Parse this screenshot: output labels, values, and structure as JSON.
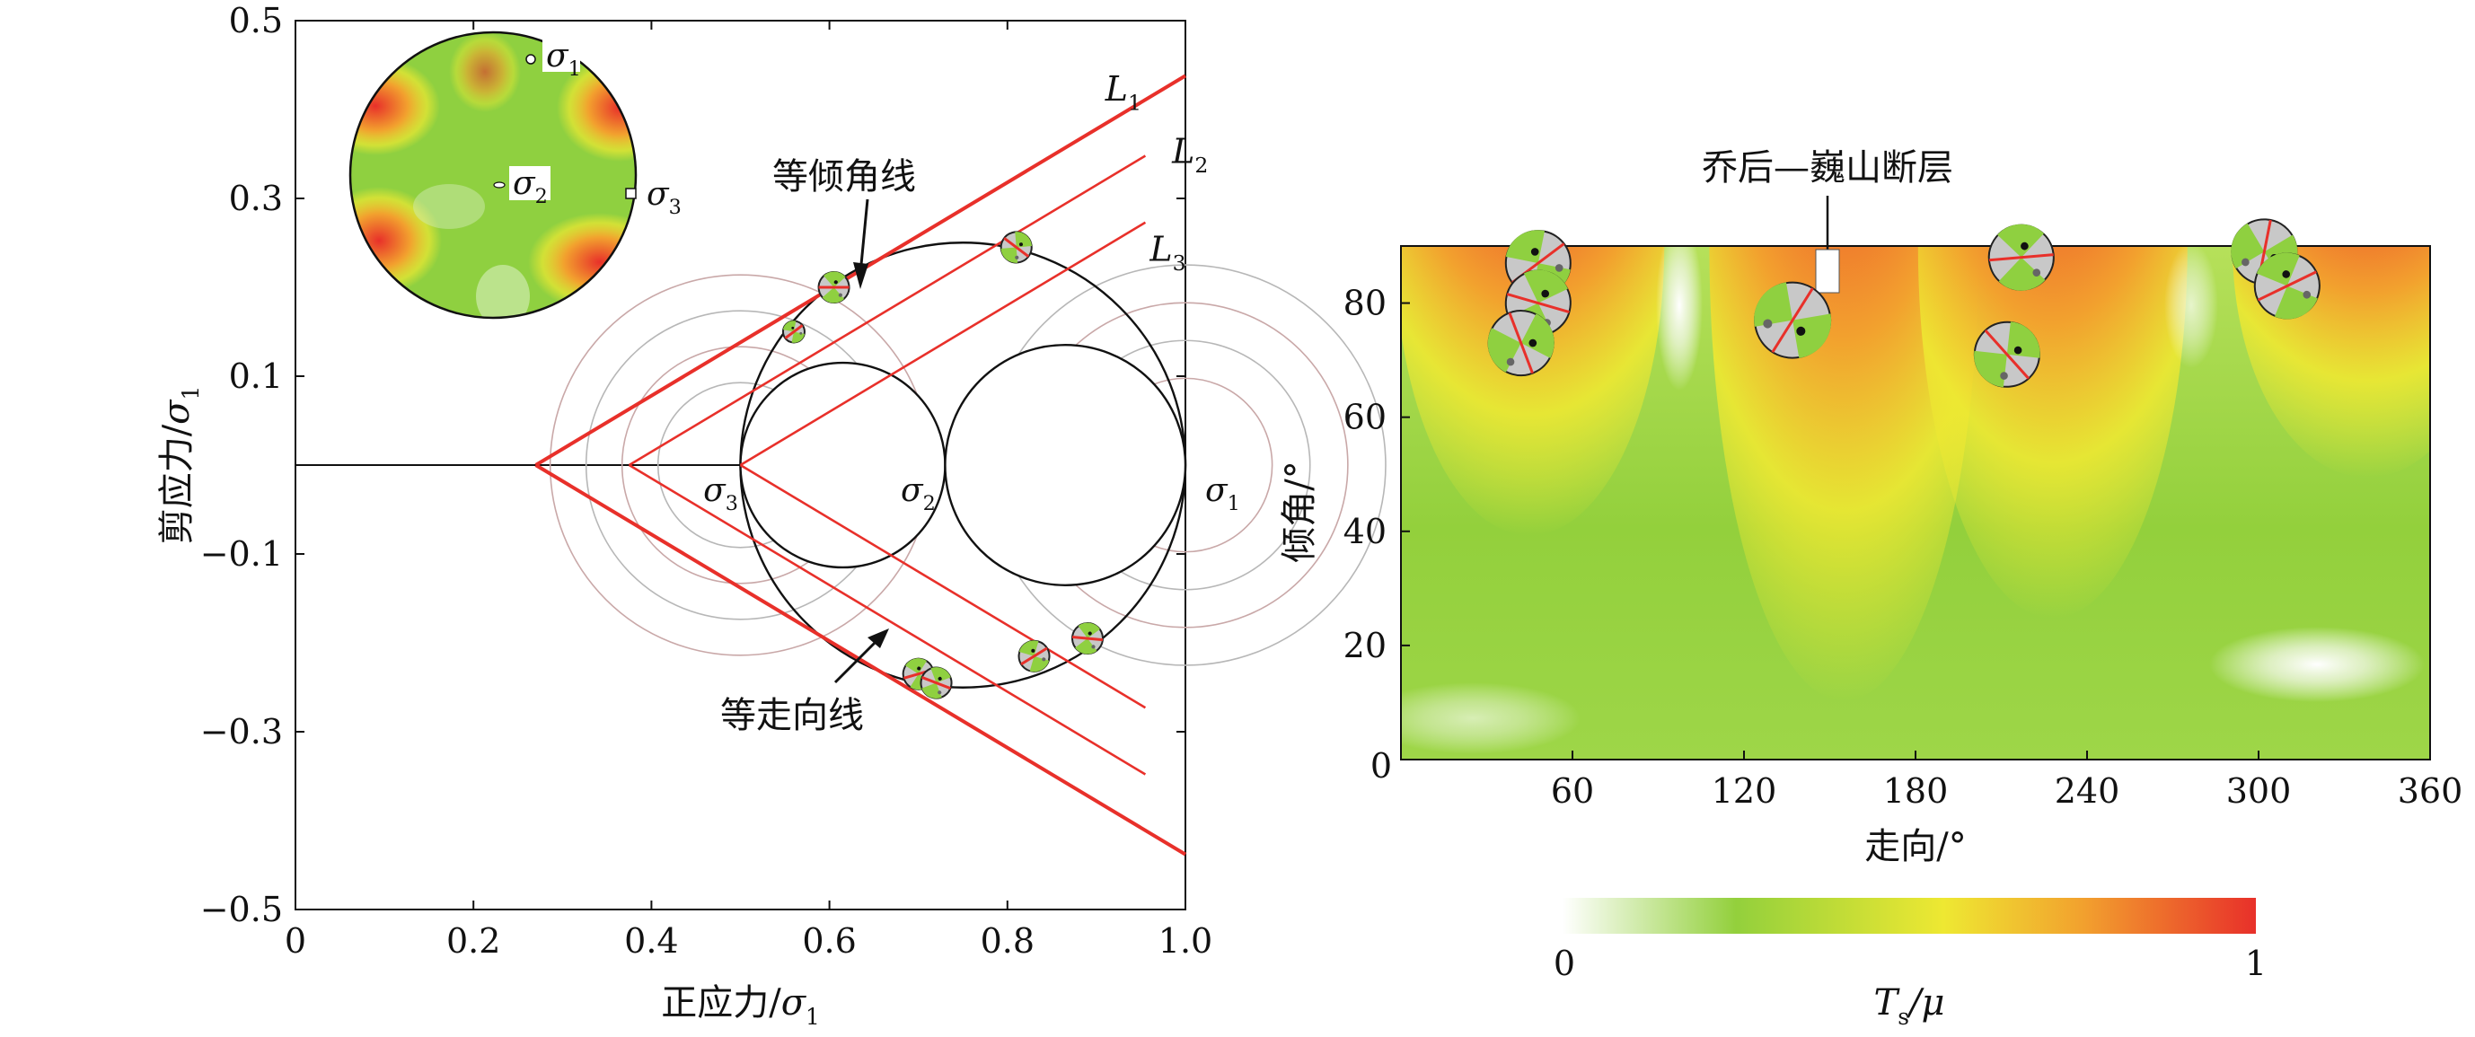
{
  "left_chart": {
    "xlabel": "正应力/σ1",
    "ylabel": "剪应力/σ1",
    "x_ticks": [
      "0",
      "0.2",
      "0.4",
      "0.6",
      "0.8",
      "1.0"
    ],
    "y_ticks": [
      "0.5",
      "0.3",
      "0.1",
      "−0.1",
      "−0.3",
      "−0.5"
    ],
    "line_labels": [
      "L",
      "L",
      "L"
    ],
    "line_label_subs": [
      "1",
      "2",
      "3"
    ],
    "stress_labels": [
      {
        "base": "σ",
        "sub": "3"
      },
      {
        "base": "σ",
        "sub": "2"
      },
      {
        "base": "σ",
        "sub": "1"
      }
    ],
    "inset_labels": [
      {
        "base": "σ",
        "sub": "1"
      },
      {
        "base": "σ",
        "sub": "2"
      },
      {
        "base": "σ",
        "sub": "3"
      }
    ],
    "annotation_dip": "等倾角线",
    "annotation_strike": "等走向线"
  },
  "right_chart": {
    "xlabel": "走向/°",
    "ylabel": "倾角/°",
    "x_ticks": [
      "60",
      "120",
      "180",
      "240",
      "300",
      "360"
    ],
    "y_ticks": [
      "80",
      "60",
      "40",
      "20",
      "0"
    ],
    "fault_label": "乔后—巍山断层",
    "colorbar_min": "0",
    "colorbar_max": "1",
    "colorbar_label_base": "T",
    "colorbar_label_sub": "s",
    "colorbar_label_rest": "/μ"
  },
  "colors": {
    "red": "#e8302a",
    "dark_red": "#b22a28",
    "green": "#8fd040",
    "yellow": "#eee832",
    "orange": "#f2a12e",
    "white": "#ffffff"
  },
  "chart_data": [
    {
      "type": "scatter",
      "title": "",
      "xlabel": "正应力/σ1",
      "ylabel": "剪应力/σ1",
      "xlim": [
        0,
        1.0
      ],
      "ylim": [
        -0.5,
        0.5
      ],
      "mohr_circles": [
        {
          "name": "σ3-σ1",
          "center": 0.75,
          "radius": 0.25
        },
        {
          "name": "σ3-σ2",
          "center": 0.615,
          "radius": 0.115
        },
        {
          "name": "σ2-σ1",
          "center": 0.865,
          "radius": 0.135
        }
      ],
      "principal_stresses": {
        "σ3": 0.5,
        "σ2": 0.73,
        "σ1": 1.0
      },
      "failure_lines": [
        {
          "name": "L1",
          "origin": 0.27,
          "slope": 0.6
        },
        {
          "name": "L2",
          "origin": 0.375,
          "slope": 0.6
        },
        {
          "name": "L3",
          "origin": 0.5,
          "slope": 0.6
        }
      ],
      "fault_points": [
        {
          "x": 0.56,
          "y": 0.15
        },
        {
          "x": 0.605,
          "y": 0.2
        },
        {
          "x": 0.81,
          "y": 0.245
        },
        {
          "x": 0.7,
          "y": -0.235
        },
        {
          "x": 0.72,
          "y": -0.245
        },
        {
          "x": 0.83,
          "y": -0.215
        },
        {
          "x": 0.89,
          "y": -0.195
        }
      ]
    },
    {
      "type": "heatmap",
      "title": "",
      "xlabel": "走向/°",
      "ylabel": "倾角/°",
      "xlim": [
        0,
        360
      ],
      "ylim": [
        0,
        90
      ],
      "colorbar": {
        "min": 0,
        "max": 1,
        "label": "Ts/μ"
      },
      "high_zones": [
        {
          "strike": 45,
          "dip_top": 90,
          "dip_bottom": 55
        },
        {
          "strike": 155,
          "dip_top": 90,
          "dip_bottom": 35
        },
        {
          "strike": 228,
          "dip_top": 90,
          "dip_bottom": 45
        },
        {
          "strike": 338,
          "dip_top": 90,
          "dip_bottom": 62
        }
      ],
      "beach_balls": [
        {
          "strike": 48,
          "dip": 87
        },
        {
          "strike": 48,
          "dip": 80
        },
        {
          "strike": 42,
          "dip": 73
        },
        {
          "strike": 137,
          "dip": 77
        },
        {
          "strike": 217,
          "dip": 88
        },
        {
          "strike": 212,
          "dip": 71
        },
        {
          "strike": 302,
          "dip": 89
        },
        {
          "strike": 310,
          "dip": 83
        }
      ],
      "fault_marker": {
        "strike": 146,
        "dip": 86
      }
    }
  ]
}
